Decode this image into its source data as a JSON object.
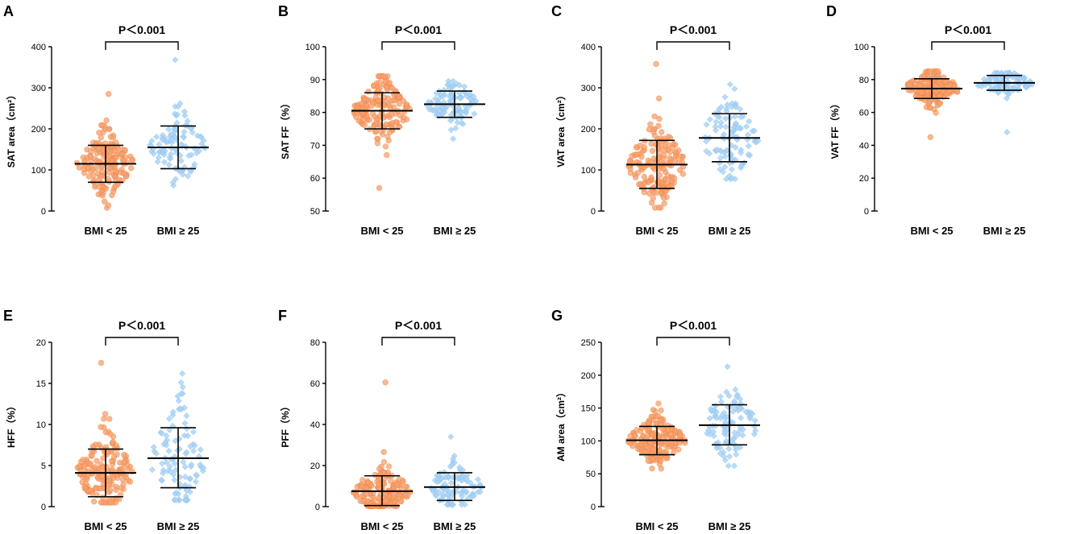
{
  "colors": {
    "group_a": "#f07a2a",
    "group_a_fill": "#f5a070",
    "group_b": "#88c0ef",
    "group_b_fill": "#a9d2f5"
  },
  "chart_data": [
    {
      "panel": "A",
      "type": "scatter",
      "ylabel": "SAT area（cm²）",
      "yticks": [
        0,
        100,
        200,
        300,
        400
      ],
      "ylim": [
        0,
        400
      ],
      "categories": [
        "BMI < 25",
        "BMI ≥ 25"
      ],
      "significance": "P＜0.001",
      "groups": [
        {
          "name": "BMI < 25",
          "mean": 115,
          "sd_low": 70,
          "sd_high": 160,
          "n": 170,
          "min": 8,
          "max": 285
        },
        {
          "name": "BMI ≥ 25",
          "mean": 155,
          "sd_low": 103,
          "sd_high": 207,
          "n": 100,
          "min": 62,
          "max": 368
        }
      ]
    },
    {
      "panel": "B",
      "type": "scatter",
      "ylabel": "SAT FF（%）",
      "yticks": [
        50,
        60,
        70,
        80,
        90,
        100
      ],
      "ylim": [
        50,
        100
      ],
      "categories": [
        "BMI < 25",
        "BMI ≥ 25"
      ],
      "significance": "P＜0.001",
      "groups": [
        {
          "name": "BMI < 25",
          "mean": 80.5,
          "sd_low": 75,
          "sd_high": 86,
          "n": 170,
          "min": 57,
          "max": 91
        },
        {
          "name": "BMI ≥ 25",
          "mean": 82.5,
          "sd_low": 78.5,
          "sd_high": 86.5,
          "n": 100,
          "min": 72,
          "max": 89.5
        }
      ]
    },
    {
      "panel": "C",
      "type": "scatter",
      "ylabel": "VAT area（cm²）",
      "yticks": [
        0,
        100,
        200,
        300,
        400
      ],
      "ylim": [
        0,
        400
      ],
      "categories": [
        "BMI < 25",
        "BMI ≥ 25"
      ],
      "significance": "P＜0.001",
      "groups": [
        {
          "name": "BMI < 25",
          "mean": 113,
          "sd_low": 55,
          "sd_high": 172,
          "n": 170,
          "min": 8,
          "max": 358
        },
        {
          "name": "BMI ≥ 25",
          "mean": 178,
          "sd_low": 120,
          "sd_high": 237,
          "n": 100,
          "min": 78,
          "max": 308
        }
      ]
    },
    {
      "panel": "D",
      "type": "scatter",
      "ylabel": "VAT FF（%）",
      "yticks": [
        0,
        20,
        40,
        60,
        80,
        100
      ],
      "ylim": [
        0,
        100
      ],
      "categories": [
        "BMI < 25",
        "BMI ≥ 25"
      ],
      "significance": "P＜0.001",
      "groups": [
        {
          "name": "BMI < 25",
          "mean": 74.5,
          "sd_low": 68.5,
          "sd_high": 80.5,
          "n": 170,
          "min": 45,
          "max": 85
        },
        {
          "name": "BMI ≥ 25",
          "mean": 78,
          "sd_low": 73.5,
          "sd_high": 82.5,
          "n": 100,
          "min": 48,
          "max": 84
        }
      ]
    },
    {
      "panel": "E",
      "type": "scatter",
      "ylabel": "HFF（%）",
      "yticks": [
        0,
        5,
        10,
        15,
        20
      ],
      "ylim": [
        0,
        20
      ],
      "categories": [
        "BMI < 25",
        "BMI ≥ 25"
      ],
      "significance": "P＜0.001",
      "groups": [
        {
          "name": "BMI < 25",
          "mean": 4.1,
          "sd_low": 1.2,
          "sd_high": 7.0,
          "n": 170,
          "min": 0.5,
          "max": 17.5
        },
        {
          "name": "BMI ≥ 25",
          "mean": 5.9,
          "sd_low": 2.3,
          "sd_high": 9.6,
          "n": 100,
          "min": 0.8,
          "max": 16.2
        }
      ]
    },
    {
      "panel": "F",
      "type": "scatter",
      "ylabel": "PFF（%）",
      "yticks": [
        0,
        20,
        40,
        60,
        80
      ],
      "ylim": [
        0,
        80
      ],
      "categories": [
        "BMI < 25",
        "BMI ≥ 25"
      ],
      "significance": "P＜0.001",
      "groups": [
        {
          "name": "BMI < 25",
          "mean": 7.5,
          "sd_low": 0.5,
          "sd_high": 15,
          "n": 170,
          "min": 0.3,
          "max": 60.5
        },
        {
          "name": "BMI ≥ 25",
          "mean": 9.5,
          "sd_low": 3,
          "sd_high": 16.5,
          "n": 100,
          "min": 1,
          "max": 34
        }
      ]
    },
    {
      "panel": "G",
      "type": "scatter",
      "ylabel": "AM area（cm²）",
      "yticks": [
        0,
        50,
        100,
        150,
        200,
        250
      ],
      "ylim": [
        0,
        250
      ],
      "categories": [
        "BMI < 25",
        "BMI ≥ 25"
      ],
      "significance": "P＜0.001",
      "groups": [
        {
          "name": "BMI < 25",
          "mean": 101,
          "sd_low": 79,
          "sd_high": 122,
          "n": 170,
          "min": 58,
          "max": 157
        },
        {
          "name": "BMI ≥ 25",
          "mean": 124,
          "sd_low": 94,
          "sd_high": 155,
          "n": 100,
          "min": 62,
          "max": 213
        }
      ]
    }
  ]
}
